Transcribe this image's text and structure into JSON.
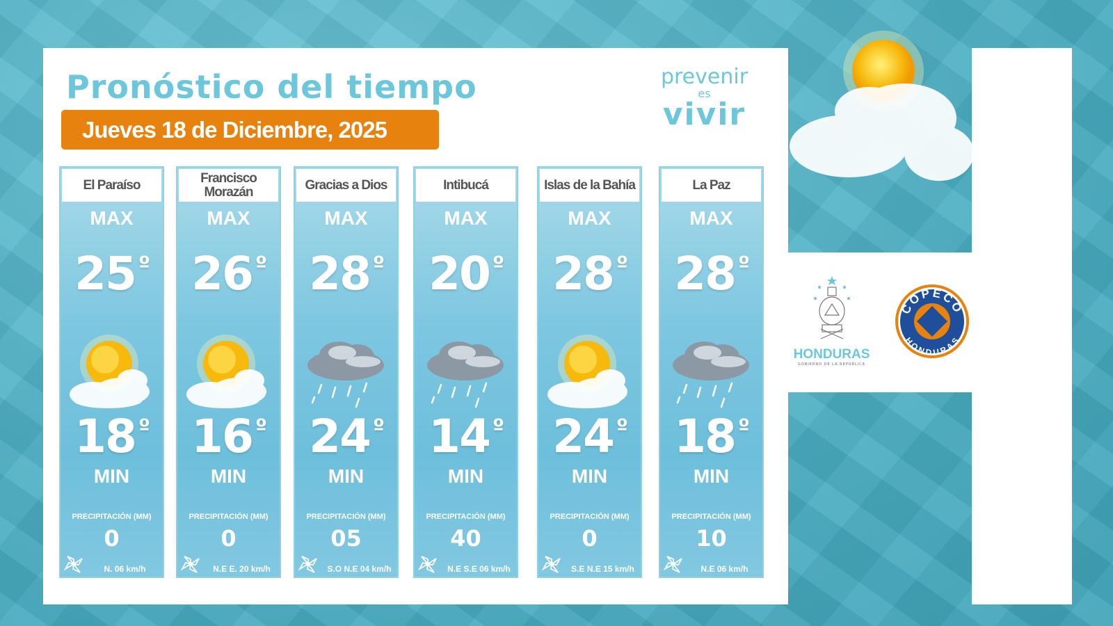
{
  "header": {
    "title": "Pronóstico del tiempo",
    "date": "Jueves 18 de Diciembre, 2025"
  },
  "slogan": {
    "line1": "prevenir",
    "line2": "es",
    "line3": "vivir"
  },
  "labels": {
    "max": "MAX",
    "min": "MIN",
    "precip": "PRECIPITACIÓN (MM)",
    "degree": "º"
  },
  "cards": [
    {
      "name": "El Paraíso",
      "max": "25",
      "min": "18",
      "precip": "0",
      "wind": "N. 06 km/h",
      "icon": "sun-cloud"
    },
    {
      "name": "Francisco Morazán",
      "max": "26",
      "min": "16",
      "precip": "0",
      "wind": "N.E E. 20 km/h",
      "icon": "sun-cloud"
    },
    {
      "name": "Gracias a Dios",
      "max": "28",
      "min": "24",
      "precip": "05",
      "wind": "S.O N.E 04 km/h",
      "icon": "rain-cloud"
    },
    {
      "name": "Intibucá",
      "max": "20",
      "min": "14",
      "precip": "40",
      "wind": "N.E S.E 06 km/h",
      "icon": "rain-cloud"
    },
    {
      "name": "Islas de la Bahía",
      "max": "28",
      "min": "24",
      "precip": "0",
      "wind": "S.E N.E 15 km/h",
      "icon": "sun-cloud"
    },
    {
      "name": "La Paz",
      "max": "28",
      "min": "18",
      "precip": "10",
      "wind": "N.E 06 km/h",
      "icon": "rain-cloud"
    }
  ],
  "logos": {
    "honduras": "HONDURAS",
    "honduras_sub": "GOBIERNO DE LA REPÚBLICA",
    "copeco_top": "COPECO",
    "copeco_bottom": "HONDURAS"
  },
  "colors": {
    "accent": "#6cc7da",
    "date_bg": "#e8820f",
    "copeco_blue": "#1f4e9a",
    "copeco_orange": "#e8820f"
  }
}
